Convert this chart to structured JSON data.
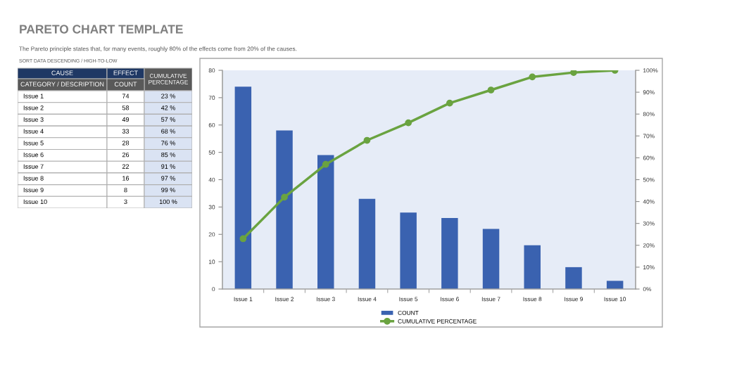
{
  "chart_data": [
    {
      "type": "other",
      "title": "PARETO CHART TEMPLATE",
      "subtitle": "The Pareto principle states that, for many events, roughly 80% of the effects come from 20% of the causes.",
      "annotations": [
        "SORT DATA DESCENDING / HIGH-TO-LOW",
        "CAUSE",
        "EFFECT",
        "CUMULATIVE PERCENTAGE",
        "CATEGORY / DESCRIPTION",
        "COUNT"
      ],
      "categories": [
        "Issue 1",
        "Issue 2",
        "Issue 3",
        "Issue 4",
        "Issue 5",
        "Issue 6",
        "Issue 7",
        "Issue 8",
        "Issue 9",
        "Issue 10"
      ],
      "series": [
        {
          "values": [
            74,
            58,
            49,
            33,
            28,
            26,
            22,
            16,
            8,
            3
          ],
          "value_labels": [
            "74",
            "58",
            "49",
            "33",
            "28",
            "26",
            "22",
            "16",
            "8",
            "3"
          ]
        },
        {
          "values": [
            23,
            42,
            57,
            68,
            76,
            85,
            91,
            97,
            99,
            100
          ],
          "value_labels": [
            "23 %",
            "42 %",
            "57 %",
            "68 %",
            "76 %",
            "85 %",
            "91 %",
            "97 %",
            "99 %",
            "100 %"
          ]
        }
      ]
    },
    {
      "type": "bar",
      "categories": [
        "Issue 1",
        "Issue 2",
        "Issue 3",
        "Issue 4",
        "Issue 5",
        "Issue 6",
        "Issue 7",
        "Issue 8",
        "Issue 9",
        "Issue 10"
      ],
      "series": [
        {
          "name": "COUNT",
          "color": "#3a62b0",
          "values": [
            74,
            58,
            49,
            33,
            28,
            26,
            22,
            16,
            8,
            3
          ]
        },
        {
          "name": "CUMULATIVE PERCENTAGE",
          "type": "line",
          "axis": "y2",
          "color": "#6aa340",
          "marker": "circle",
          "values": [
            23,
            42,
            57,
            68,
            76,
            85,
            91,
            97,
            99,
            100
          ]
        }
      ],
      "ylim": [
        0,
        80
      ],
      "yticks": [
        0,
        10,
        20,
        30,
        40,
        50,
        60,
        70,
        80
      ],
      "y2lim": [
        0,
        100
      ],
      "y2ticks": [
        {
          "value": 0,
          "label": "0%"
        },
        {
          "value": 10,
          "label": "10%"
        },
        {
          "value": 20,
          "label": "20%"
        },
        {
          "value": 30,
          "label": "30%"
        },
        {
          "value": 40,
          "label": "40%"
        },
        {
          "value": 50,
          "label": "50%"
        },
        {
          "value": 60,
          "label": "60%"
        },
        {
          "value": 70,
          "label": "70%"
        },
        {
          "value": 80,
          "label": "80%"
        },
        {
          "value": 90,
          "label": "90%"
        },
        {
          "value": 100,
          "label": "100%"
        }
      ],
      "legend": "bottom"
    }
  ]
}
